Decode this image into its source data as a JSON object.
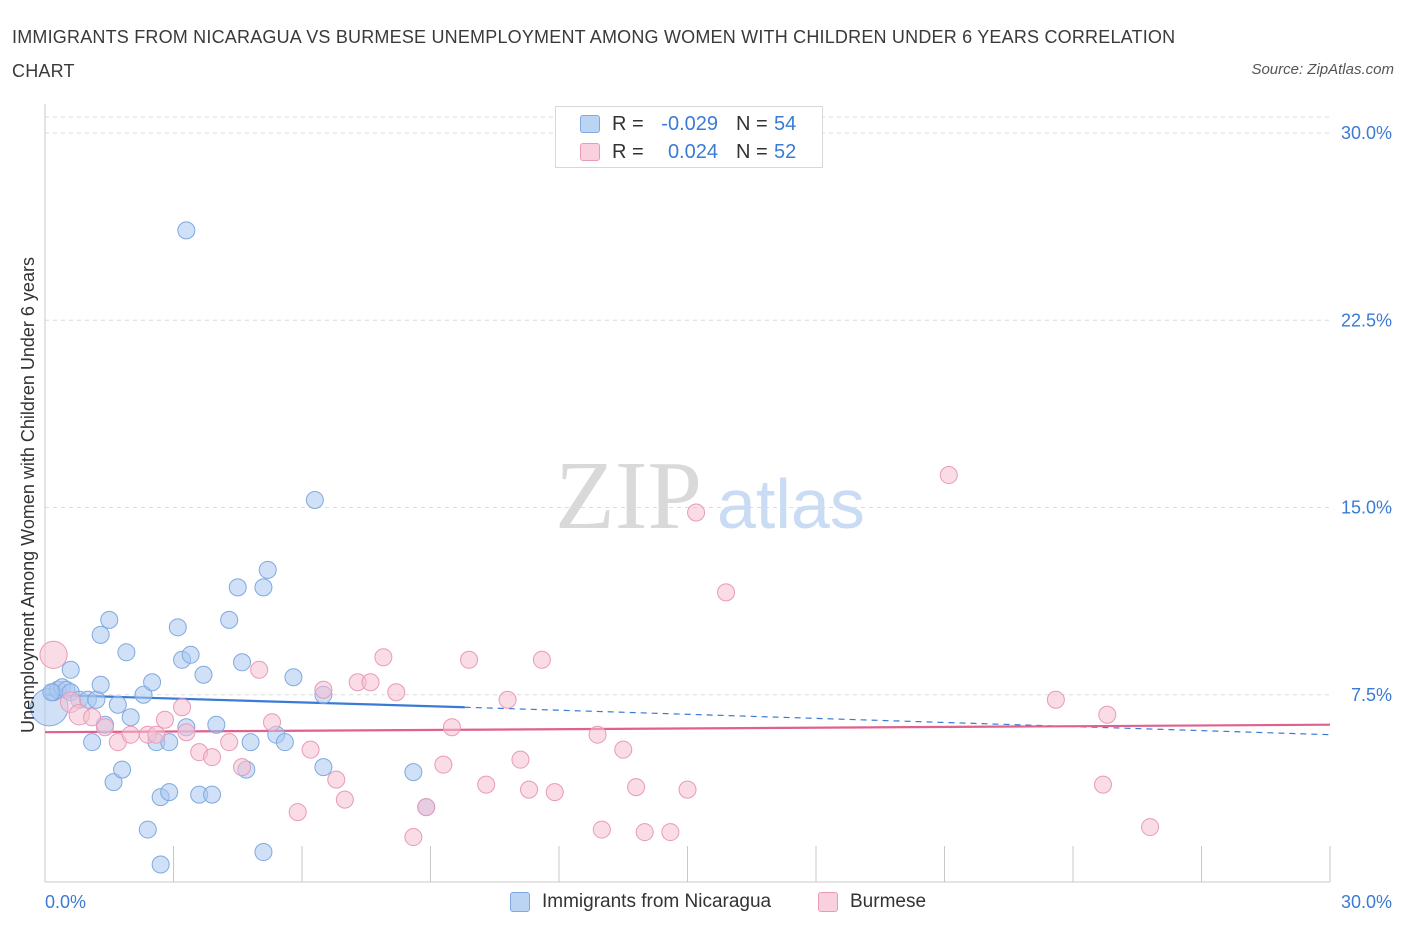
{
  "title": "IMMIGRANTS FROM NICARAGUA VS BURMESE UNEMPLOYMENT AMONG WOMEN WITH CHILDREN UNDER 6 YEARS CORRELATION CHART",
  "source": "Source: ZipAtlas.com",
  "watermark": {
    "zip": "ZIP",
    "atlas": "atlas"
  },
  "colors": {
    "blue_fill": "#a9c8f0",
    "blue_stroke": "#7fa9e0",
    "blue_line": "#3a7bd5",
    "pink_fill": "#f6c0d2",
    "pink_stroke": "#e99ab6",
    "pink_line": "#e0608e",
    "axis_text": "#3a7bd5",
    "grid": "#dcdcdc"
  },
  "legend": {
    "rows": [
      {
        "r_label": "R =",
        "r_value": "-0.029",
        "n_label": "N =",
        "n_value": "54",
        "series": "blue"
      },
      {
        "r_label": "R =",
        "r_value": "0.024",
        "n_label": "N =",
        "n_value": "52",
        "series": "pink"
      }
    ]
  },
  "bottom_legend": [
    {
      "label": "Immigrants from Nicaragua",
      "series": "blue"
    },
    {
      "label": "Burmese",
      "series": "pink"
    }
  ],
  "chart_data": {
    "type": "scatter",
    "title": "IMMIGRANTS FROM NICARAGUA VS BURMESE UNEMPLOYMENT AMONG WOMEN WITH CHILDREN UNDER 6 YEARS CORRELATION CHART",
    "xlabel": "",
    "ylabel": "Unemployment Among Women with Children Under 6 years",
    "xlim": [
      0,
      30
    ],
    "ylim": [
      0,
      30
    ],
    "x_tick_labels": [
      "0.0%",
      "30.0%"
    ],
    "y_ticks": [
      7.5,
      15,
      22.5,
      30
    ],
    "y_tick_labels": [
      "7.5%",
      "15.0%",
      "22.5%",
      "30.0%"
    ],
    "grid": "horizontal dashed",
    "legend_position": "top-center",
    "series": [
      {
        "name": "Immigrants from Nicaragua",
        "color": "blue",
        "r": -0.029,
        "n": 54,
        "trend": {
          "x0": 0,
          "y0": 7.5,
          "x_solid_end": 9.8,
          "y_solid_end": 7.0,
          "x1": 30,
          "y1": 5.9
        },
        "points": [
          [
            0.1,
            7.0,
            2.2
          ],
          [
            0.2,
            7.6,
            1
          ],
          [
            0.3,
            7.7,
            1
          ],
          [
            0.4,
            7.8,
            1
          ],
          [
            0.5,
            7.7,
            1
          ],
          [
            0.6,
            8.5,
            1
          ],
          [
            0.6,
            7.6,
            1
          ],
          [
            0.8,
            7.3,
            1
          ],
          [
            1.0,
            7.3,
            1
          ],
          [
            1.1,
            5.6,
            1
          ],
          [
            1.2,
            7.3,
            1
          ],
          [
            1.3,
            9.9,
            1
          ],
          [
            1.3,
            7.9,
            1
          ],
          [
            1.4,
            6.3,
            1
          ],
          [
            1.5,
            10.5,
            1
          ],
          [
            1.6,
            4.0,
            1
          ],
          [
            1.7,
            7.1,
            1
          ],
          [
            1.8,
            4.5,
            1
          ],
          [
            1.9,
            9.2,
            1
          ],
          [
            2.0,
            6.6,
            1
          ],
          [
            2.3,
            7.5,
            1
          ],
          [
            2.4,
            2.1,
            1
          ],
          [
            2.5,
            8.0,
            1
          ],
          [
            2.6,
            5.6,
            1
          ],
          [
            2.7,
            3.4,
            1
          ],
          [
            2.7,
            0.7,
            1
          ],
          [
            2.9,
            3.6,
            1
          ],
          [
            2.9,
            5.6,
            1
          ],
          [
            3.1,
            10.2,
            1
          ],
          [
            3.2,
            8.9,
            1
          ],
          [
            3.3,
            6.2,
            1
          ],
          [
            3.3,
            26.1,
            1
          ],
          [
            3.4,
            9.1,
            1
          ],
          [
            3.6,
            3.5,
            1
          ],
          [
            3.7,
            8.3,
            1
          ],
          [
            3.9,
            3.5,
            1
          ],
          [
            4.0,
            6.3,
            1
          ],
          [
            4.3,
            10.5,
            1
          ],
          [
            4.5,
            11.8,
            1
          ],
          [
            4.6,
            8.8,
            1
          ],
          [
            4.7,
            4.5,
            1
          ],
          [
            4.8,
            5.6,
            1
          ],
          [
            5.1,
            1.2,
            1
          ],
          [
            5.1,
            11.8,
            1
          ],
          [
            5.2,
            12.5,
            1
          ],
          [
            5.4,
            5.9,
            1
          ],
          [
            5.6,
            5.6,
            1
          ],
          [
            5.8,
            8.2,
            1
          ],
          [
            6.3,
            15.3,
            1
          ],
          [
            6.5,
            4.6,
            1
          ],
          [
            6.5,
            7.5,
            1
          ],
          [
            8.6,
            4.4,
            1
          ],
          [
            8.9,
            3.0,
            1
          ],
          [
            0.15,
            7.6,
            1
          ]
        ]
      },
      {
        "name": "Burmese",
        "color": "pink",
        "r": 0.024,
        "n": 52,
        "trend": {
          "x0": 0,
          "y0": 6.0,
          "x1": 30,
          "y1": 6.3
        },
        "points": [
          [
            0.2,
            9.1,
            1.6
          ],
          [
            0.6,
            7.2,
            1.2
          ],
          [
            0.8,
            6.7,
            1.2
          ],
          [
            1.1,
            6.6,
            1
          ],
          [
            1.4,
            6.2,
            1
          ],
          [
            1.7,
            5.6,
            1
          ],
          [
            2.0,
            5.9,
            1
          ],
          [
            2.4,
            5.9,
            1
          ],
          [
            2.6,
            5.9,
            1
          ],
          [
            2.8,
            6.5,
            1
          ],
          [
            3.2,
            7.0,
            1
          ],
          [
            3.3,
            6.0,
            1
          ],
          [
            3.6,
            5.2,
            1
          ],
          [
            3.9,
            5.0,
            1
          ],
          [
            4.3,
            5.6,
            1
          ],
          [
            4.6,
            4.6,
            1
          ],
          [
            5.0,
            8.5,
            1
          ],
          [
            5.3,
            6.4,
            1
          ],
          [
            5.9,
            2.8,
            1
          ],
          [
            6.2,
            5.3,
            1
          ],
          [
            6.5,
            7.7,
            1
          ],
          [
            6.8,
            4.1,
            1
          ],
          [
            7.0,
            3.3,
            1
          ],
          [
            7.3,
            8.0,
            1
          ],
          [
            7.6,
            8.0,
            1
          ],
          [
            7.9,
            9.0,
            1
          ],
          [
            8.2,
            7.6,
            1
          ],
          [
            8.6,
            1.8,
            1
          ],
          [
            8.9,
            3.0,
            1
          ],
          [
            9.3,
            4.7,
            1
          ],
          [
            9.5,
            6.2,
            1
          ],
          [
            9.9,
            8.9,
            1
          ],
          [
            10.3,
            3.9,
            1
          ],
          [
            10.8,
            7.3,
            1
          ],
          [
            11.1,
            4.9,
            1
          ],
          [
            11.3,
            3.7,
            1
          ],
          [
            11.6,
            8.9,
            1
          ],
          [
            11.9,
            3.6,
            1
          ],
          [
            12.9,
            5.9,
            1
          ],
          [
            13.0,
            2.1,
            1
          ],
          [
            13.5,
            5.3,
            1
          ],
          [
            13.8,
            3.8,
            1
          ],
          [
            14.0,
            2.0,
            1
          ],
          [
            14.6,
            2.0,
            1
          ],
          [
            15.0,
            3.7,
            1
          ],
          [
            15.2,
            14.8,
            1
          ],
          [
            15.9,
            11.6,
            1
          ],
          [
            21.1,
            16.3,
            1
          ],
          [
            23.6,
            7.3,
            1
          ],
          [
            24.7,
            3.9,
            1
          ],
          [
            24.8,
            6.7,
            1
          ],
          [
            25.8,
            2.2,
            1
          ]
        ]
      }
    ]
  }
}
